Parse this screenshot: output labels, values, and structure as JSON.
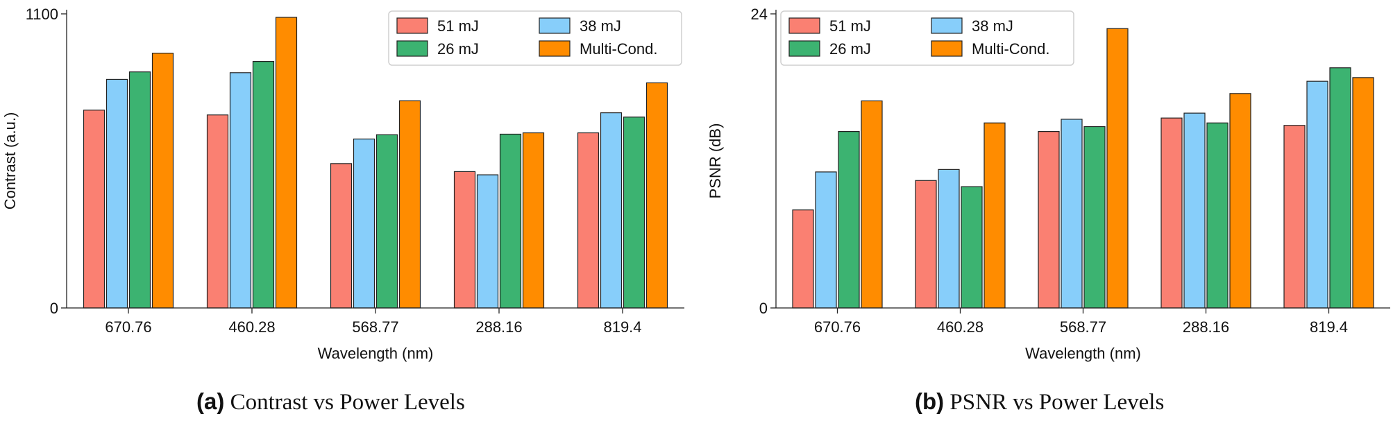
{
  "chart_data": [
    {
      "type": "bar",
      "xlabel": "Wavelength (nm)",
      "ylabel": "Contrast (a.u.)",
      "categories": [
        "670.76",
        "460.28",
        "568.77",
        "288.16",
        "819.4"
      ],
      "yticks": [
        "0",
        "1100"
      ],
      "ylim": [
        0,
        1100
      ],
      "series": [
        {
          "name": "51 mJ",
          "color": "#fa8072",
          "values": [
            740,
            722,
            540,
            510,
            655
          ]
        },
        {
          "name": "38 mJ",
          "color": "#87cefa",
          "values": [
            855,
            880,
            632,
            498,
            730
          ]
        },
        {
          "name": "26 mJ",
          "color": "#3cb371",
          "values": [
            883,
            922,
            648,
            650,
            714
          ]
        },
        {
          "name": "Multi-Cond.",
          "color": "#ff8c00",
          "values": [
            953,
            1087,
            775,
            655,
            842
          ]
        }
      ],
      "legend": {
        "placement": "top-right",
        "columns": 2
      },
      "caption": {
        "label": "(a)",
        "text": "Contrast vs Power Levels"
      }
    },
    {
      "type": "bar",
      "xlabel": "Wavelength (nm)",
      "ylabel": "PSNR (dB)",
      "categories": [
        "670.76",
        "460.28",
        "568.77",
        "288.16",
        "819.4"
      ],
      "yticks": [
        "0",
        "24"
      ],
      "ylim": [
        0,
        24
      ],
      "series": [
        {
          "name": "51 mJ",
          "color": "#fa8072",
          "values": [
            8.0,
            10.4,
            14.4,
            15.5,
            14.9
          ]
        },
        {
          "name": "38 mJ",
          "color": "#87cefa",
          "values": [
            11.1,
            11.3,
            15.4,
            15.9,
            18.5
          ]
        },
        {
          "name": "26 mJ",
          "color": "#3cb371",
          "values": [
            14.4,
            9.9,
            14.8,
            15.1,
            19.6
          ]
        },
        {
          "name": "Multi-Cond.",
          "color": "#ff8c00",
          "values": [
            16.9,
            15.1,
            22.8,
            17.5,
            18.8
          ]
        }
      ],
      "legend": {
        "placement": "top-left",
        "columns": 2
      },
      "caption": {
        "label": "(b)",
        "text": "PSNR vs Power Levels"
      }
    }
  ]
}
